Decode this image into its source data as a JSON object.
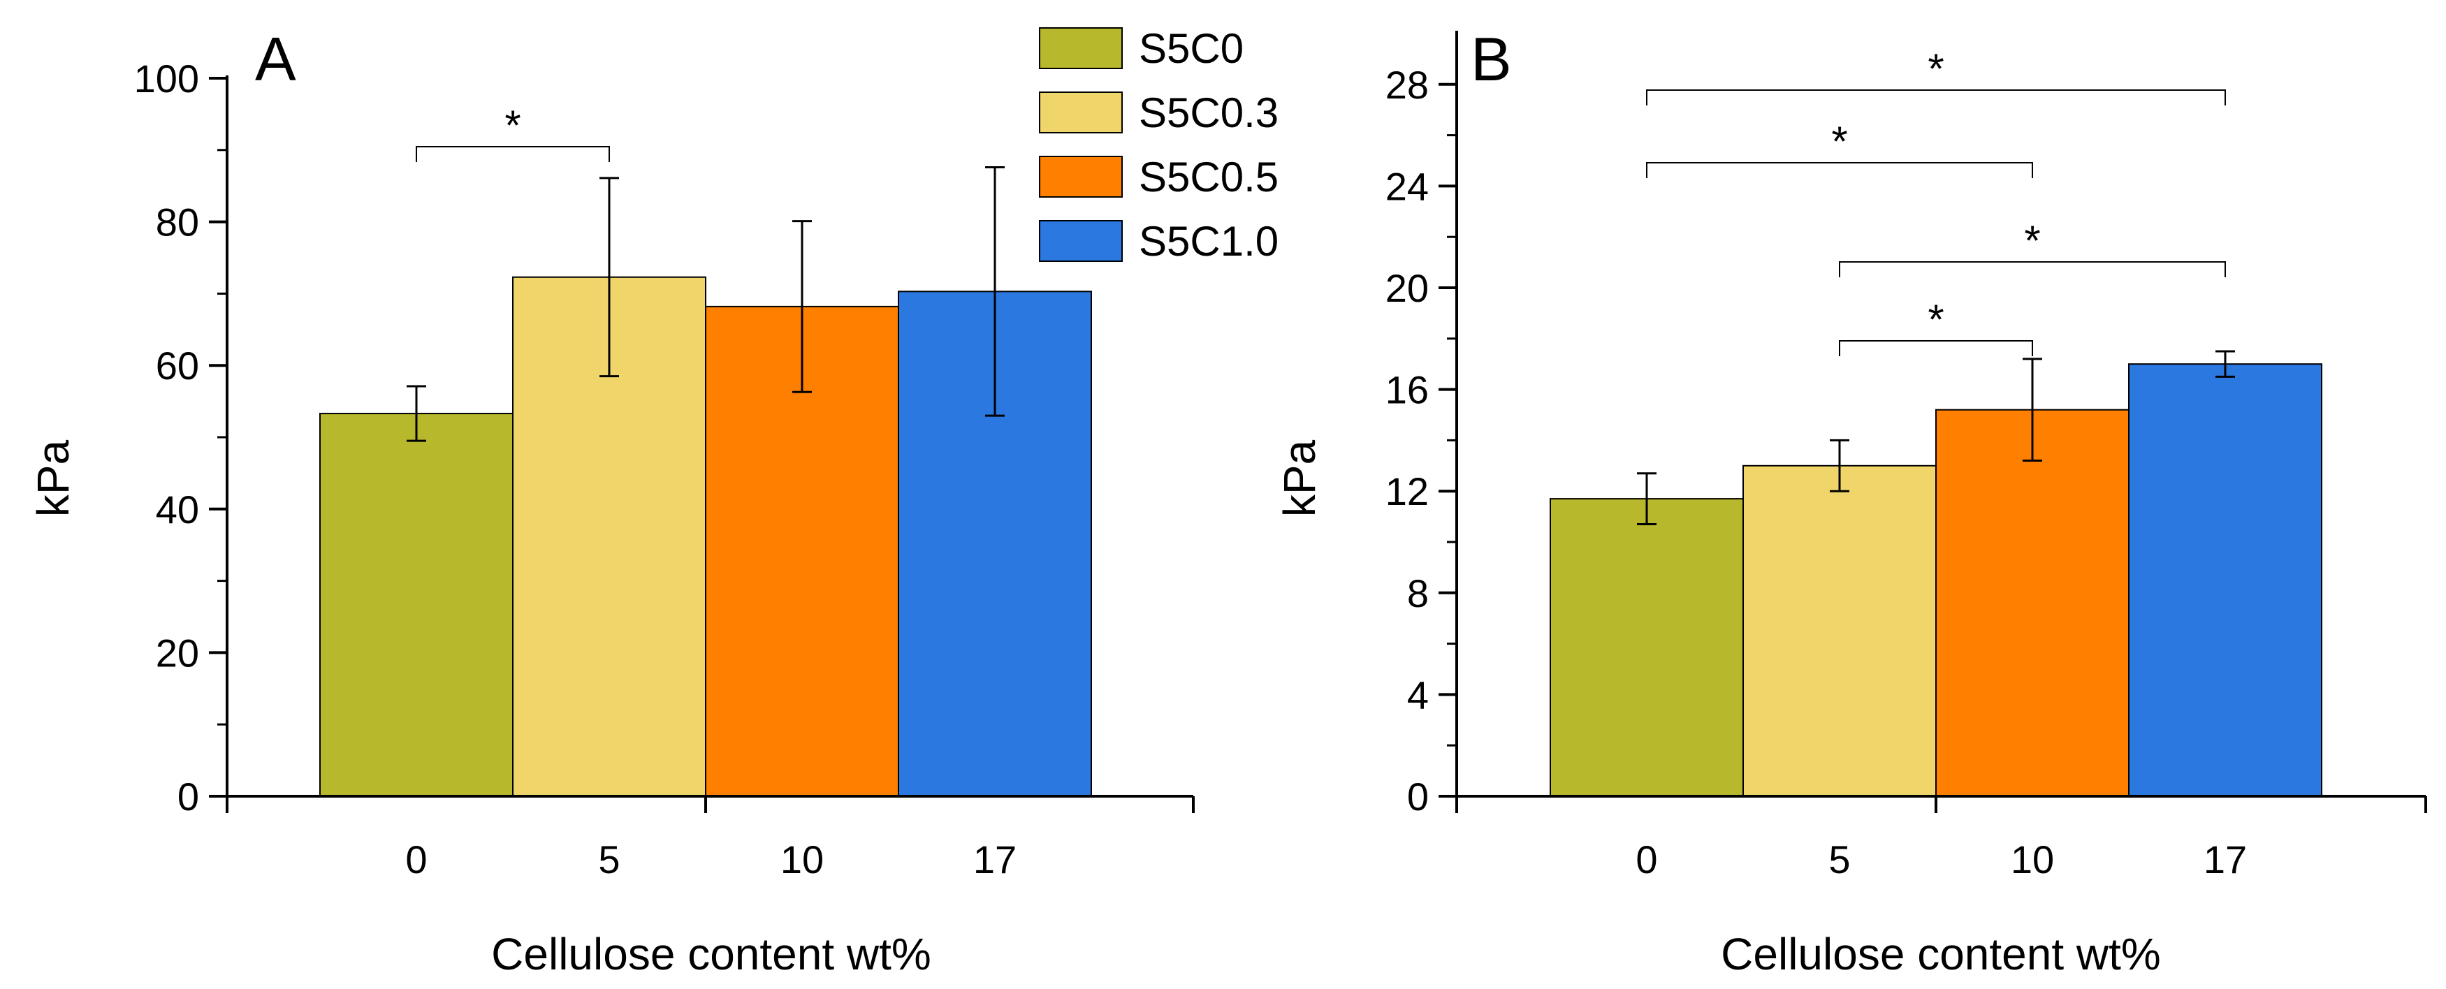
{
  "chart_data": [
    {
      "type": "bar",
      "panel": "A",
      "xlabel": "Cellulose content wt%",
      "ylabel": "kPa",
      "ylim": [
        0,
        100
      ],
      "yticks": [
        0,
        20,
        40,
        60,
        80,
        100
      ],
      "categories": [
        "0",
        "5",
        "10",
        "17"
      ],
      "values": [
        53.3,
        72.3,
        68.2,
        70.3
      ],
      "errors": [
        3.8,
        13.8,
        11.9,
        17.3
      ],
      "colors": [
        "#B8B82D",
        "#F0D66A",
        "#FF8000",
        "#2C78E1"
      ],
      "series_names": [
        "S5C0",
        "S5C0.3",
        "S5C0.5",
        "S5C1.0"
      ],
      "legend": {
        "position": "top-right",
        "entries": [
          {
            "label": "S5C0",
            "color": "#B8B82D"
          },
          {
            "label": "S5C0.3",
            "color": "#F0D66A"
          },
          {
            "label": "S5C0.5",
            "color": "#FF8000"
          },
          {
            "label": "S5C1.0",
            "color": "#2C78E1"
          }
        ]
      },
      "significance": [
        {
          "from": 0,
          "to": 1,
          "label": "*"
        }
      ]
    },
    {
      "type": "bar",
      "panel": "B",
      "xlabel": "Cellulose content wt%",
      "ylabel": "kPa",
      "ylim": [
        0,
        30
      ],
      "yticks": [
        0,
        4,
        8,
        12,
        16,
        20,
        24,
        28
      ],
      "categories": [
        "0",
        "5",
        "10",
        "17"
      ],
      "values": [
        11.7,
        13.0,
        15.2,
        17.0
      ],
      "errors": [
        1.0,
        1.0,
        2.0,
        0.5
      ],
      "colors": [
        "#B8B82D",
        "#F0D66A",
        "#FF8000",
        "#2C78E1"
      ],
      "series_names": [
        "S5C0",
        "S5C0.3",
        "S5C0.5",
        "S5C1.0"
      ],
      "significance": [
        {
          "from": 0,
          "to": 3,
          "label": "*"
        },
        {
          "from": 0,
          "to": 2,
          "label": "*"
        },
        {
          "from": 1,
          "to": 3,
          "label": "*"
        },
        {
          "from": 1,
          "to": 2,
          "label": "*"
        }
      ]
    }
  ]
}
